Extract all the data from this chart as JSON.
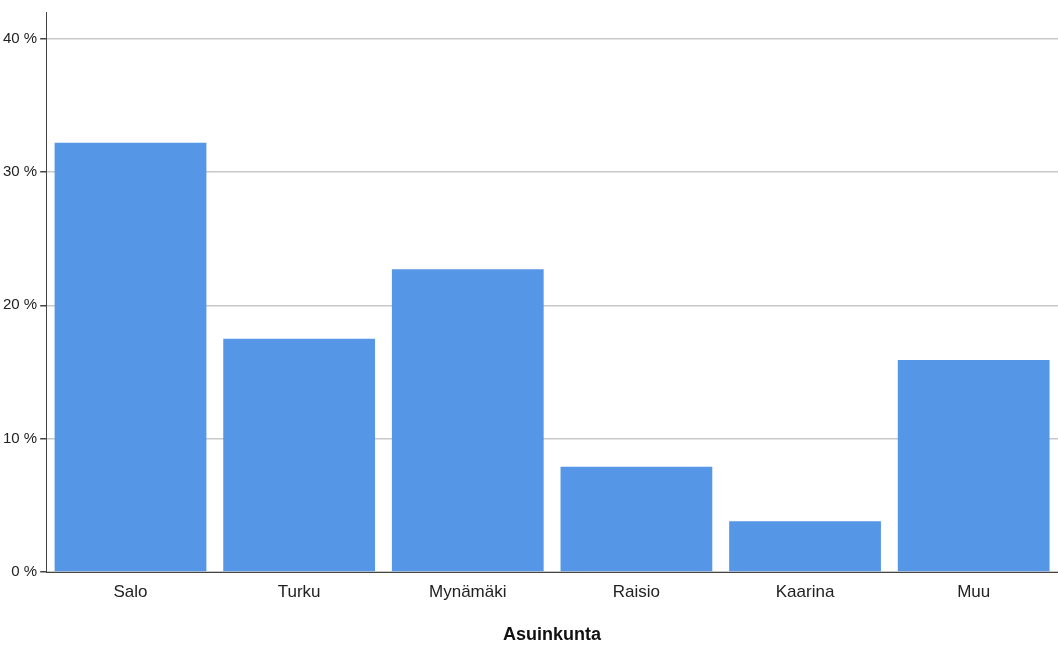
{
  "chart_data": {
    "type": "bar",
    "xlabel": "Asuinkunta",
    "categories": [
      "Salo",
      "Turku",
      "Mynämäki",
      "Raisio",
      "Kaarina",
      "Muu"
    ],
    "values": [
      32.2,
      17.5,
      22.7,
      7.9,
      3.8,
      15.9
    ],
    "color": "#5596e6",
    "ylim": [
      0,
      42
    ],
    "yticks": [
      {
        "value": 0,
        "label": "0 %"
      },
      {
        "value": 10,
        "label": "10 %"
      },
      {
        "value": 20,
        "label": "20 %"
      },
      {
        "value": 30,
        "label": "30 %"
      },
      {
        "value": 40,
        "label": "40 %"
      }
    ],
    "grid": "y"
  }
}
